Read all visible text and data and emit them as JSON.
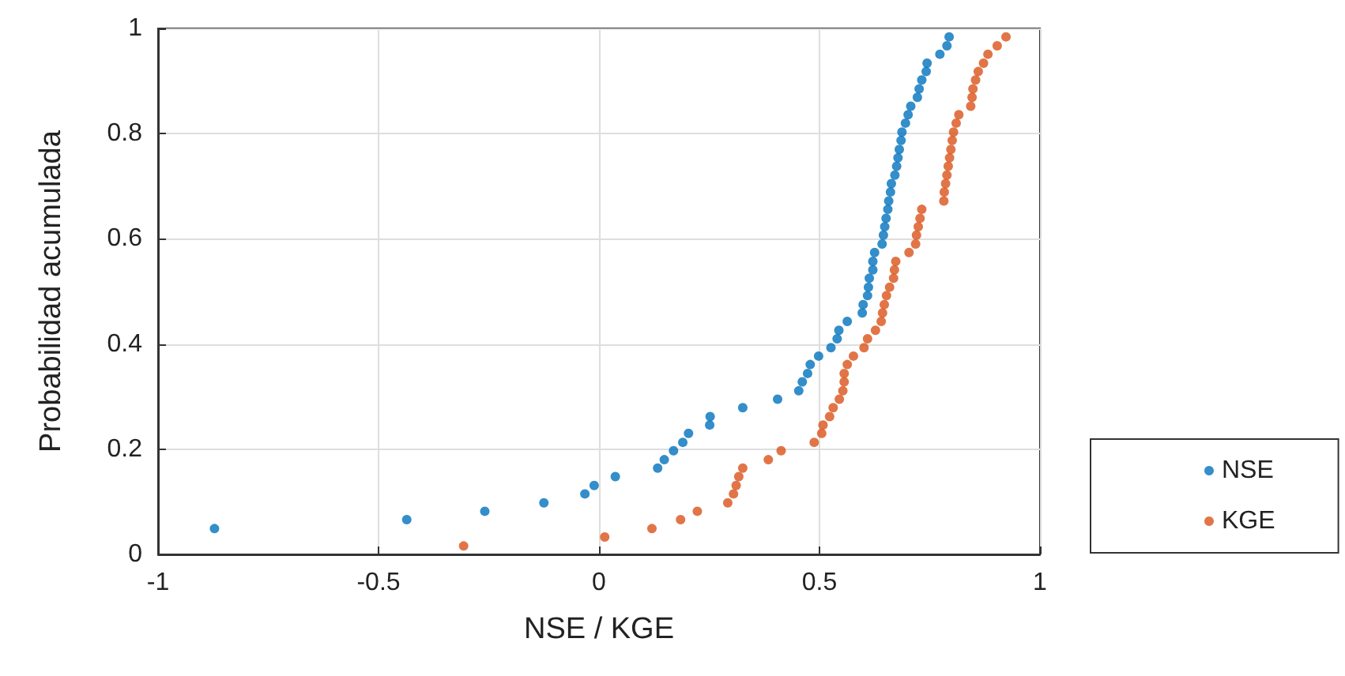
{
  "chart_data": {
    "type": "scatter",
    "xlabel": "NSE / KGE",
    "ylabel": "Probabilidad acumulada",
    "xlim": [
      -1,
      1
    ],
    "xticks": [
      -1,
      -0.5,
      0,
      0.5,
      1
    ],
    "ylim": [
      0,
      1
    ],
    "yticks": [
      0,
      0.2,
      0.4,
      0.6,
      0.8,
      1
    ],
    "grid": true,
    "legend": "bottom right",
    "marker": "circle",
    "series": [
      {
        "name": "NSE",
        "color": "#0072bd",
        "x": [
          -0.872,
          -0.436,
          -0.259,
          -0.125,
          -0.032,
          -0.011,
          0.037,
          0.133,
          0.148,
          0.169,
          0.19,
          0.203,
          0.251,
          0.252,
          0.326,
          0.405,
          0.453,
          0.461,
          0.473,
          0.479,
          0.498,
          0.526,
          0.54,
          0.544,
          0.563,
          0.597,
          0.599,
          0.609,
          0.611,
          0.613,
          0.621,
          0.621,
          0.625,
          0.642,
          0.645,
          0.648,
          0.651,
          0.655,
          0.657,
          0.661,
          0.663,
          0.671,
          0.675,
          0.678,
          0.681,
          0.685,
          0.687,
          0.695,
          0.701,
          0.707,
          0.722,
          0.726,
          0.732,
          0.742,
          0.744,
          0.773,
          0.789,
          0.794
        ],
        "values": [
          0.049,
          0.066,
          0.082,
          0.098,
          0.115,
          0.131,
          0.148,
          0.164,
          0.18,
          0.197,
          0.213,
          0.23,
          0.246,
          0.262,
          0.279,
          0.295,
          0.311,
          0.328,
          0.344,
          0.361,
          0.377,
          0.393,
          0.41,
          0.426,
          0.443,
          0.459,
          0.475,
          0.492,
          0.508,
          0.525,
          0.541,
          0.557,
          0.574,
          0.59,
          0.607,
          0.623,
          0.639,
          0.656,
          0.672,
          0.689,
          0.705,
          0.721,
          0.738,
          0.754,
          0.77,
          0.787,
          0.803,
          0.82,
          0.836,
          0.852,
          0.869,
          0.885,
          0.902,
          0.918,
          0.934,
          0.951,
          0.967,
          0.984
        ]
      },
      {
        "name": "KGE",
        "color": "#d95319",
        "x": [
          -0.307,
          0.013,
          0.12,
          0.185,
          0.223,
          0.292,
          0.305,
          0.311,
          0.317,
          0.326,
          0.384,
          0.413,
          0.488,
          0.505,
          0.508,
          0.523,
          0.531,
          0.545,
          0.553,
          0.556,
          0.556,
          0.563,
          0.577,
          0.601,
          0.609,
          0.627,
          0.64,
          0.643,
          0.647,
          0.652,
          0.659,
          0.668,
          0.67,
          0.673,
          0.703,
          0.718,
          0.72,
          0.724,
          0.728,
          0.732,
          0.782,
          0.783,
          0.786,
          0.789,
          0.792,
          0.795,
          0.798,
          0.801,
          0.804,
          0.81,
          0.816,
          0.843,
          0.846,
          0.848,
          0.854,
          0.86,
          0.872,
          0.882,
          0.903,
          0.923
        ],
        "values": [
          0.016,
          0.033,
          0.049,
          0.066,
          0.082,
          0.098,
          0.115,
          0.131,
          0.148,
          0.164,
          0.18,
          0.197,
          0.213,
          0.23,
          0.246,
          0.262,
          0.279,
          0.295,
          0.311,
          0.328,
          0.344,
          0.361,
          0.377,
          0.393,
          0.41,
          0.426,
          0.443,
          0.459,
          0.475,
          0.492,
          0.508,
          0.525,
          0.541,
          0.557,
          0.574,
          0.59,
          0.607,
          0.623,
          0.639,
          0.656,
          0.672,
          0.689,
          0.705,
          0.721,
          0.738,
          0.754,
          0.77,
          0.787,
          0.803,
          0.82,
          0.836,
          0.852,
          0.869,
          0.885,
          0.902,
          0.918,
          0.934,
          0.951,
          0.967,
          0.984
        ]
      }
    ]
  }
}
